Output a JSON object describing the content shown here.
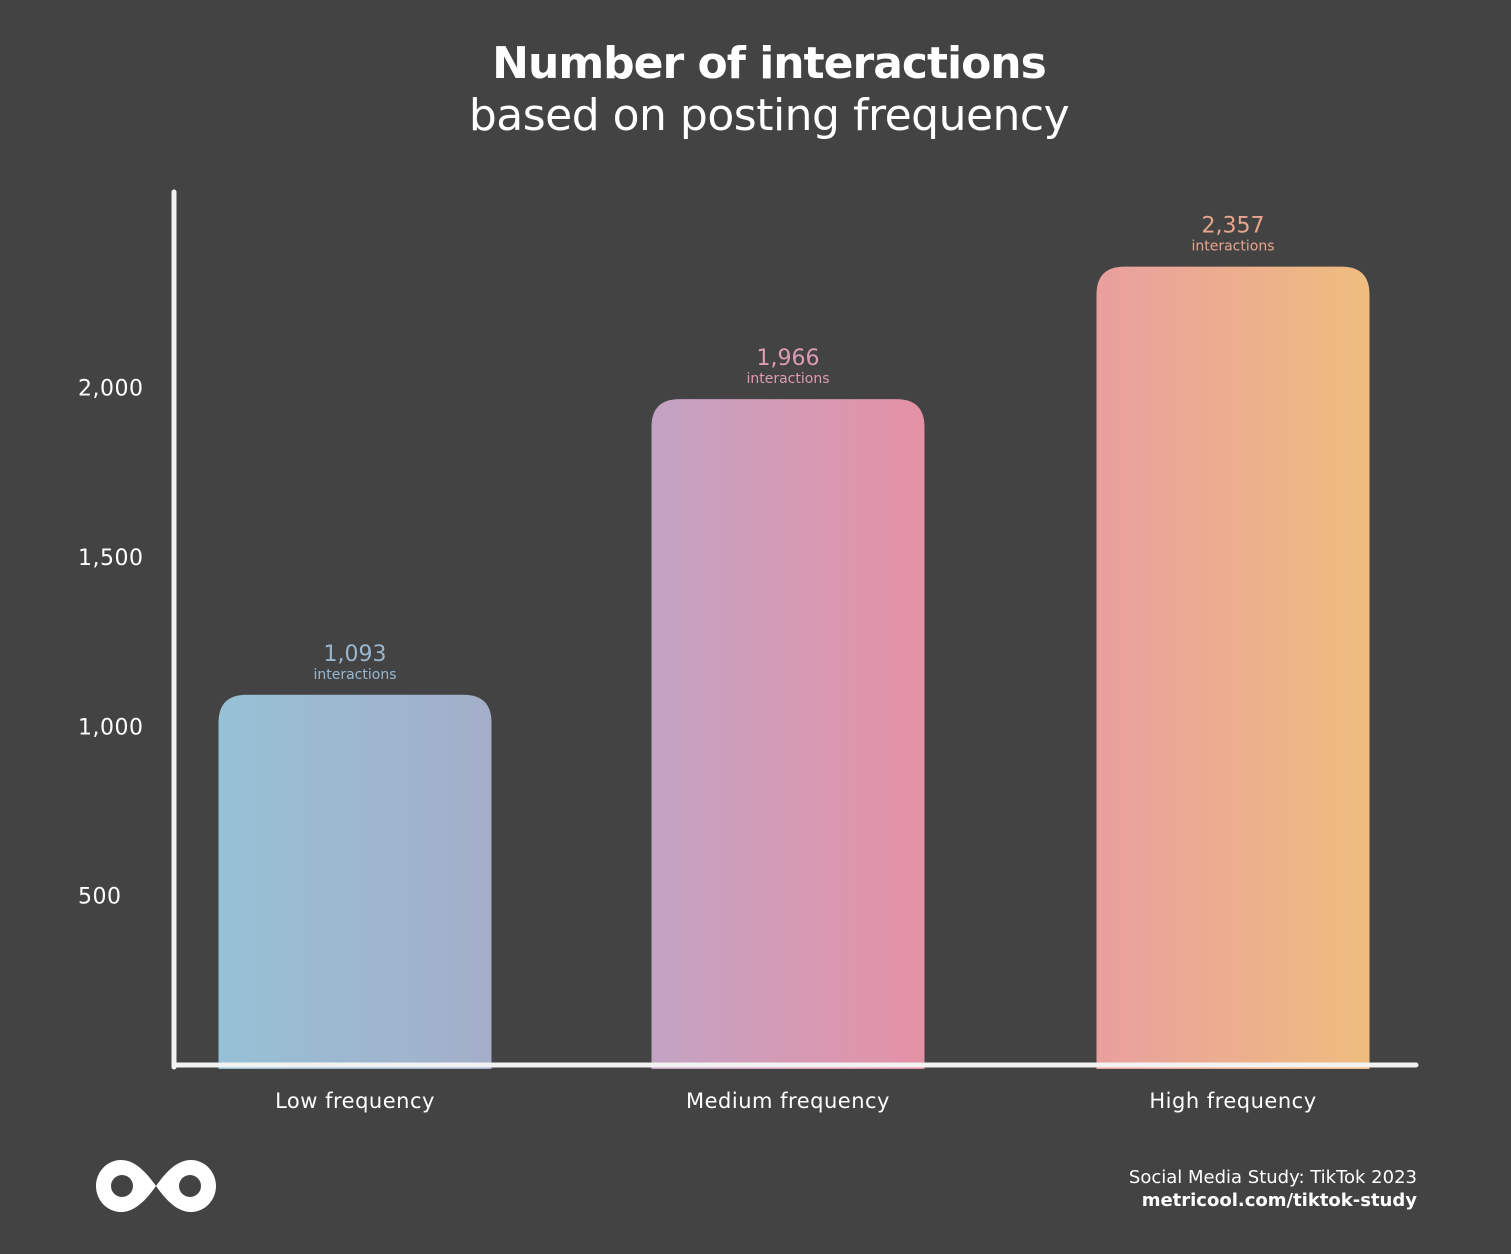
{
  "chart_data": {
    "type": "bar",
    "title": "Number of interactions",
    "subtitle": "based on posting frequency",
    "categories": [
      "Low frequency",
      "Medium frequency",
      "High frequency"
    ],
    "values": [
      1093,
      1966,
      2357
    ],
    "value_labels": [
      "1,093",
      "1,966",
      "2,357"
    ],
    "value_unit": "interactions",
    "yticks": [
      500,
      1000,
      1500,
      2000
    ],
    "ytick_labels": [
      "500",
      "1,000",
      "1,500",
      "2,000"
    ],
    "ylim": [
      0,
      2600
    ],
    "xlabel": "",
    "ylabel": "",
    "label_colors": [
      "#9ab7cf",
      "#de9bb5",
      "#e8a58e"
    ],
    "gradients": [
      [
        "#96c1d6",
        "#a4aec9"
      ],
      [
        "#c3a3c4",
        "#e591a5"
      ],
      [
        "#e99f9e",
        "#efbd7e"
      ]
    ]
  },
  "footer": {
    "study": "Social Media Study: TikTok 2023",
    "url": "metricool.com/tiktok-study"
  },
  "logo": {
    "icon": "metricool-infinity-icon"
  }
}
